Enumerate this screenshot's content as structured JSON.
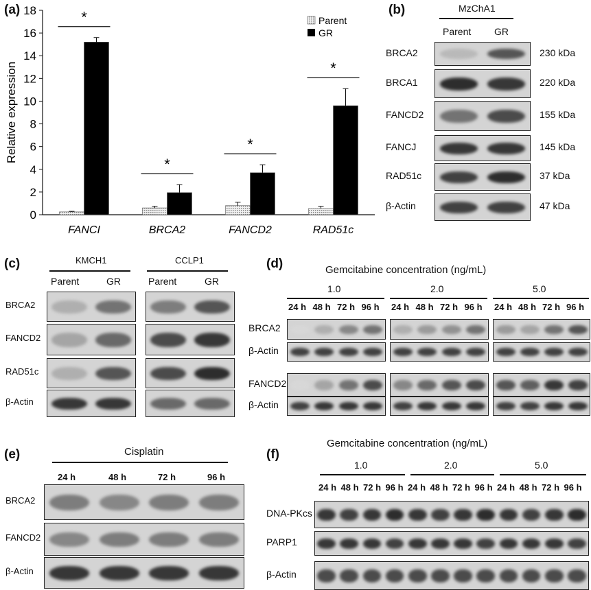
{
  "panel_labels": {
    "a": "(a)",
    "b": "(b)",
    "c": "(c)",
    "d": "(d)",
    "e": "(e)",
    "f": "(f)"
  },
  "chart_data": {
    "type": "bar",
    "ylabel": "Relative expression",
    "ylim": [
      0,
      18
    ],
    "yticks": [
      0,
      2,
      4,
      6,
      8,
      10,
      12,
      14,
      16,
      18
    ],
    "categories": [
      "FANCI",
      "BRCA2",
      "FANCD2",
      "RAD51c"
    ],
    "series": [
      {
        "name": "Parent",
        "values": [
          0.25,
          0.6,
          0.8,
          0.55
        ],
        "errors": [
          0.05,
          0.15,
          0.3,
          0.2
        ],
        "color": "#dcdcdc"
      },
      {
        "name": "GR",
        "values": [
          15.2,
          1.95,
          3.7,
          9.6
        ],
        "errors": [
          0.4,
          0.7,
          0.7,
          1.5
        ],
        "color": "#000000"
      }
    ],
    "significance": [
      "*",
      "*",
      "*",
      "*"
    ],
    "legend_position": "top-right"
  },
  "b": {
    "cell_line": "MzChA1",
    "cols": [
      "Parent",
      "GR"
    ],
    "rows": [
      {
        "label": "BRCA2",
        "size": "230 kDa"
      },
      {
        "label": "BRCA1",
        "size": "220 kDa"
      },
      {
        "label": "FANCD2",
        "size": "155 kDa"
      },
      {
        "label": "FANCJ",
        "size": "145 kDa"
      },
      {
        "label": "RAD51c",
        "size": "37 kDa"
      },
      {
        "label": "β-Actin",
        "size": "47 kDa"
      }
    ]
  },
  "c": {
    "cell_lines": [
      "KMCH1",
      "CCLP1"
    ],
    "cols": [
      "Parent",
      "GR"
    ],
    "rows": [
      "BRCA2",
      "FANCD2",
      "RAD51c",
      "β-Actin"
    ]
  },
  "d": {
    "title": "Gemcitabine concentration (ng/mL)",
    "concentrations": [
      "1.0",
      "2.0",
      "5.0"
    ],
    "times": [
      "24 h",
      "48 h",
      "72 h",
      "96 h"
    ],
    "rows": [
      "BRCA2",
      "β-Actin",
      "FANCD2",
      "β-Actin"
    ]
  },
  "e": {
    "title": "Cisplatin",
    "times": [
      "24 h",
      "48 h",
      "72 h",
      "96 h"
    ],
    "rows": [
      "BRCA2",
      "FANCD2",
      "β-Actin"
    ]
  },
  "f": {
    "title": "Gemcitabine concentration (ng/mL)",
    "concentrations": [
      "1.0",
      "2.0",
      "5.0"
    ],
    "times": [
      "24 h",
      "48 h",
      "72 h",
      "96 h"
    ],
    "rows": [
      "DNA-PKcs",
      "PARP1",
      "β-Actin"
    ]
  }
}
